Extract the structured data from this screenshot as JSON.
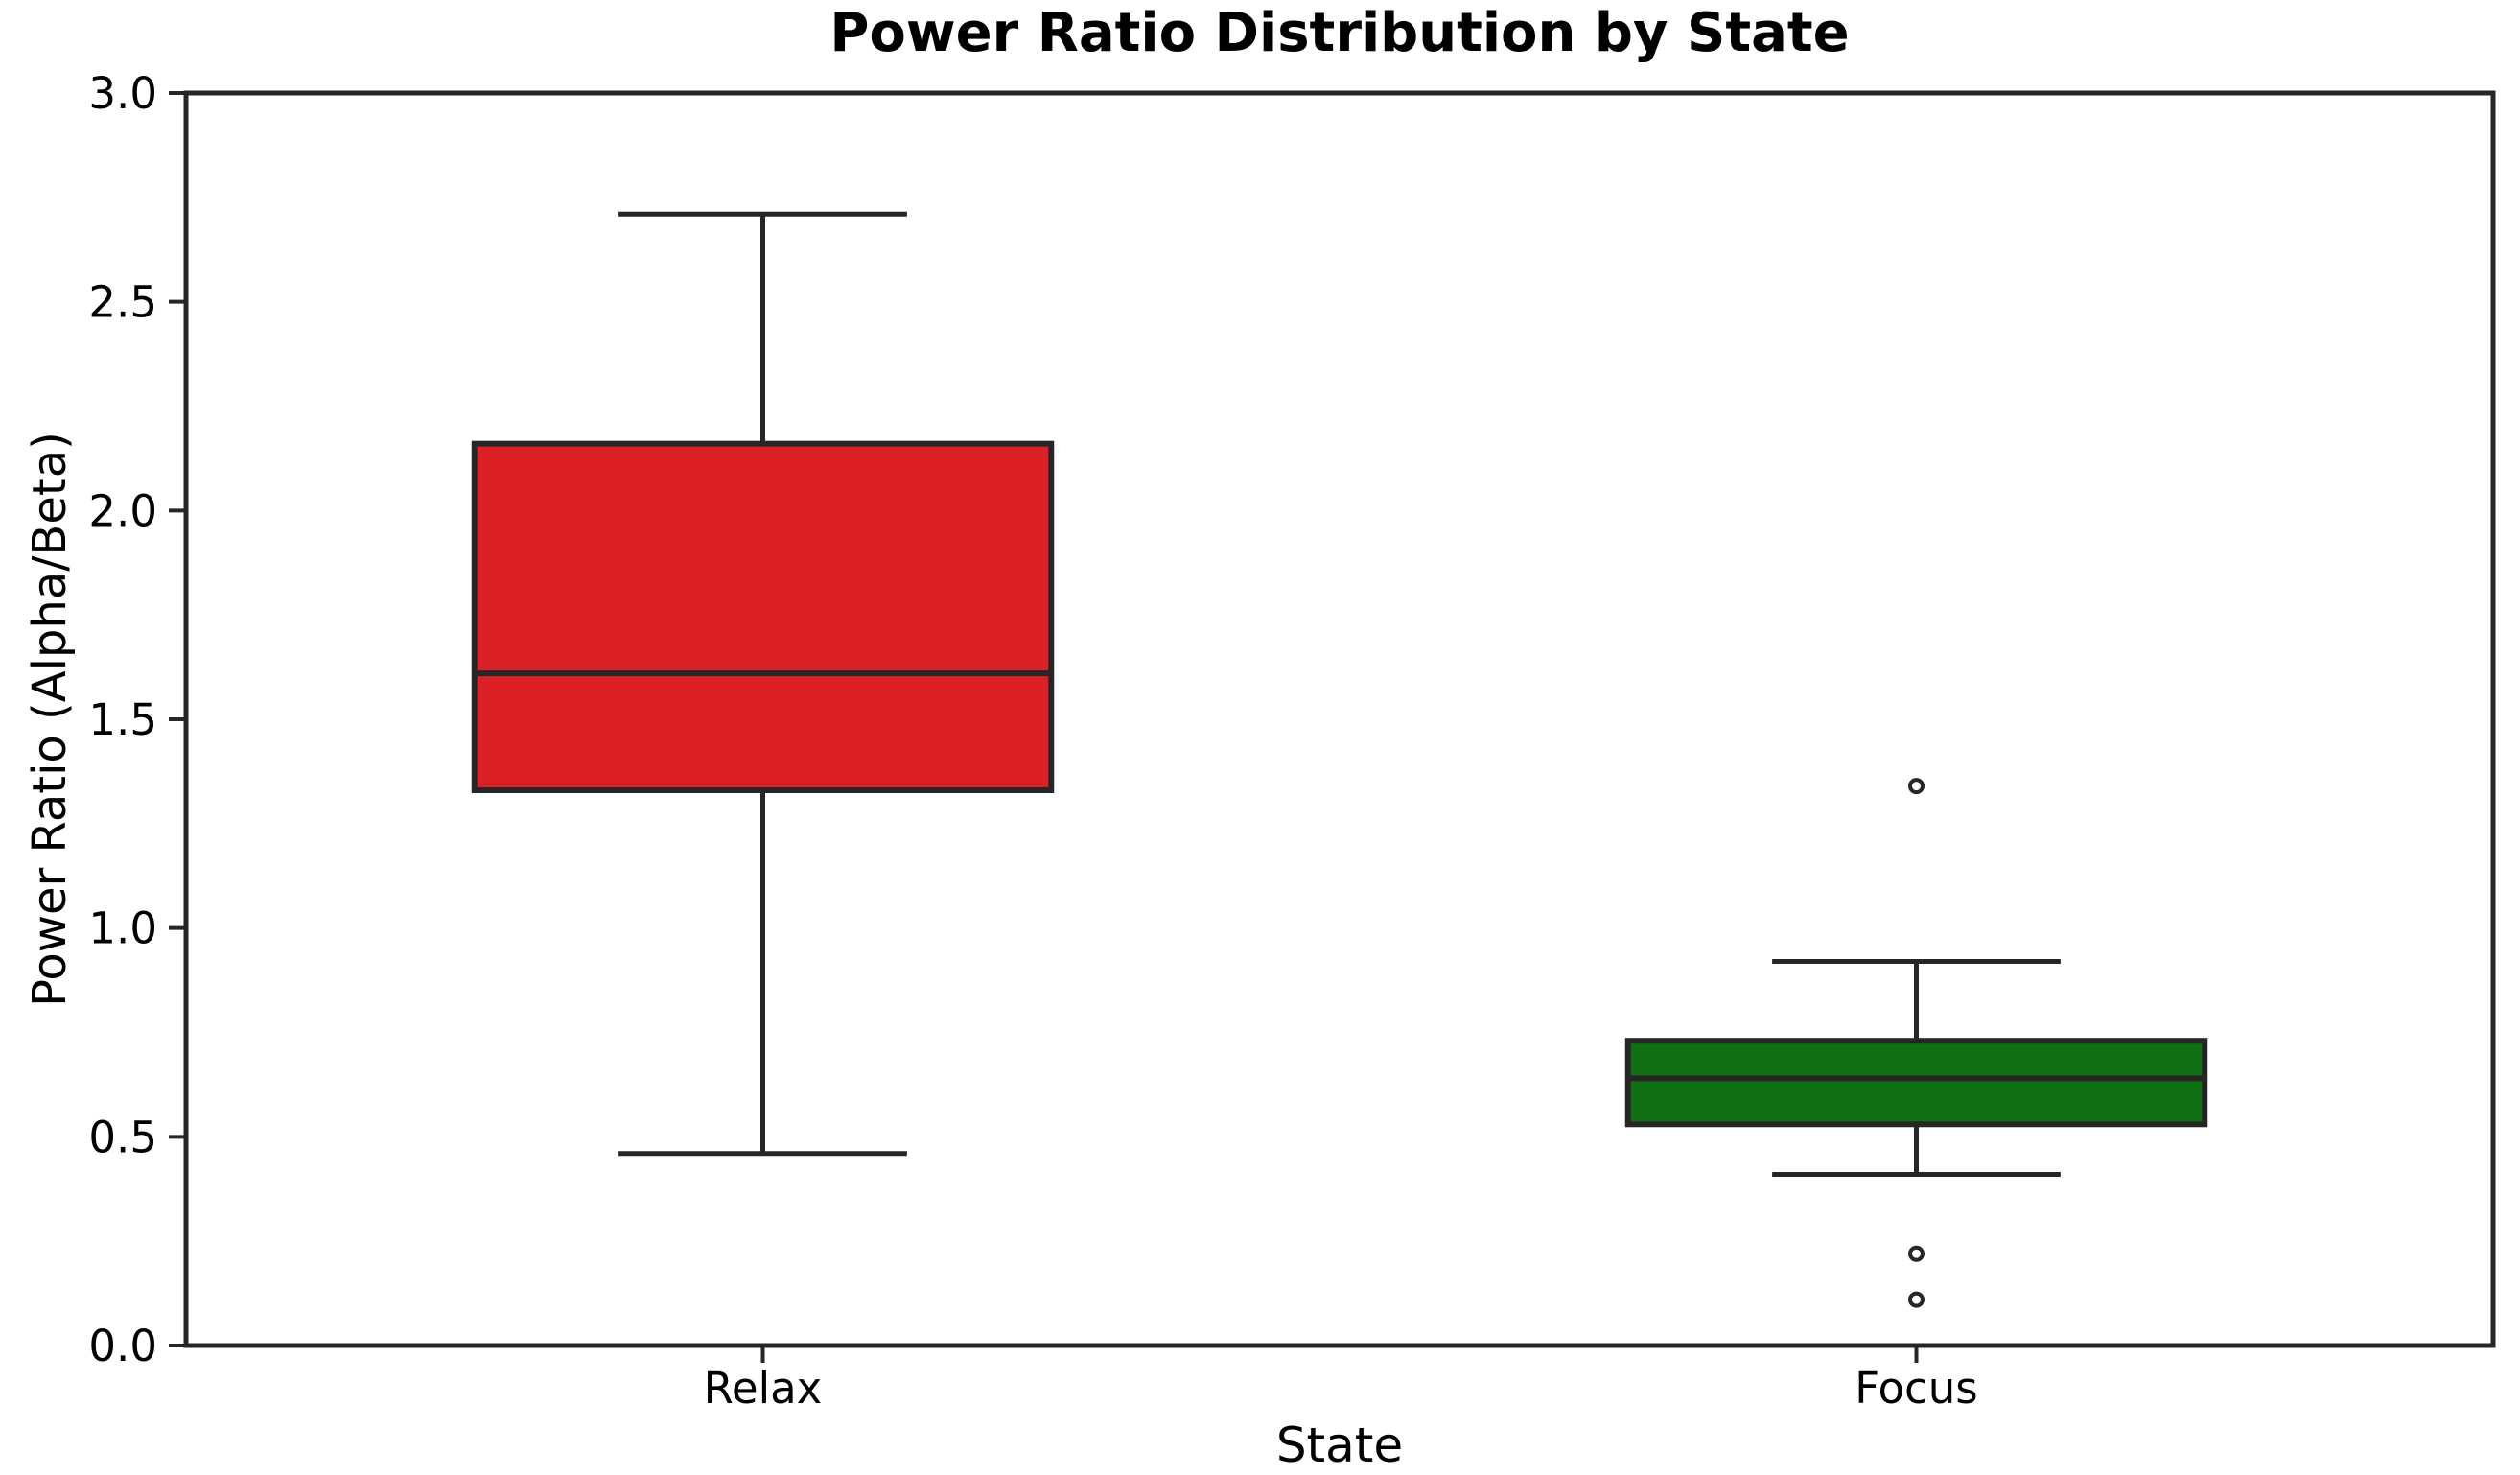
{
  "chart_data": {
    "type": "boxplot",
    "title": "Power Ratio Distribution by State",
    "xlabel": "State",
    "ylabel": "Power Ratio (Alpha/Beta)",
    "categories": [
      "Relax",
      "Focus"
    ],
    "ylim": [
      0.0,
      3.0
    ],
    "yticks": [
      0.0,
      0.5,
      1.0,
      1.5,
      2.0,
      2.5,
      3.0
    ],
    "grid": false,
    "edge_color": "#262626",
    "outlier_fill": "#ffffff",
    "series": [
      {
        "name": "Relax",
        "color": "#dc2126",
        "whisker_low": 0.46,
        "q1": 1.33,
        "median": 1.61,
        "q3": 2.16,
        "whisker_high": 2.71,
        "outliers": []
      },
      {
        "name": "Focus",
        "color": "#116f13",
        "whisker_low": 0.41,
        "q1": 0.53,
        "median": 0.64,
        "q3": 0.73,
        "whisker_high": 0.92,
        "outliers": [
          1.34,
          0.22,
          0.11
        ]
      }
    ]
  }
}
